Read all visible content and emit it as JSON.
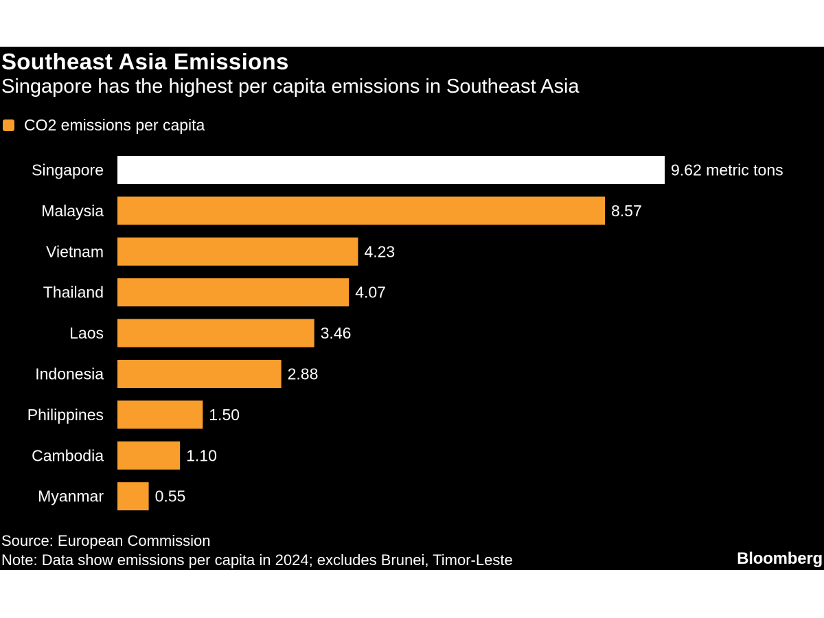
{
  "header": {
    "title": "Southeast Asia Emissions",
    "subtitle": "Singapore has the highest per capita emissions in Southeast Asia"
  },
  "legend": {
    "label": "CO2 emissions per capita"
  },
  "colors": {
    "panel_background": "#000000",
    "bar": "#f99e2c",
    "highlight_bar": "#ffffff",
    "text": "#ffffff"
  },
  "chart_data": {
    "type": "bar",
    "orientation": "horizontal",
    "title": "Southeast Asia Emissions",
    "subtitle": "Singapore has the highest per capita emissions in Southeast Asia",
    "categories": [
      "Singapore",
      "Malaysia",
      "Vietnam",
      "Thailand",
      "Laos",
      "Indonesia",
      "Philippines",
      "Cambodia",
      "Myanmar"
    ],
    "series": [
      {
        "name": "CO2 emissions per capita",
        "values": [
          9.62,
          8.57,
          4.23,
          4.07,
          3.46,
          2.88,
          1.5,
          1.1,
          0.55
        ]
      }
    ],
    "value_labels": [
      "9.62 metric tons",
      "8.57",
      "4.23",
      "4.07",
      "3.46",
      "2.88",
      "1.50",
      "1.10",
      "0.55"
    ],
    "highlight_category": "Singapore",
    "unit": "metric tons",
    "xlim": [
      0,
      9.62
    ],
    "grid": false,
    "legend_position": "top-left"
  },
  "footer": {
    "source": "Source: European Commission",
    "note": "Note: Data show emissions per capita in 2024; excludes Brunei, Timor-Leste",
    "brand": "Bloomberg"
  }
}
